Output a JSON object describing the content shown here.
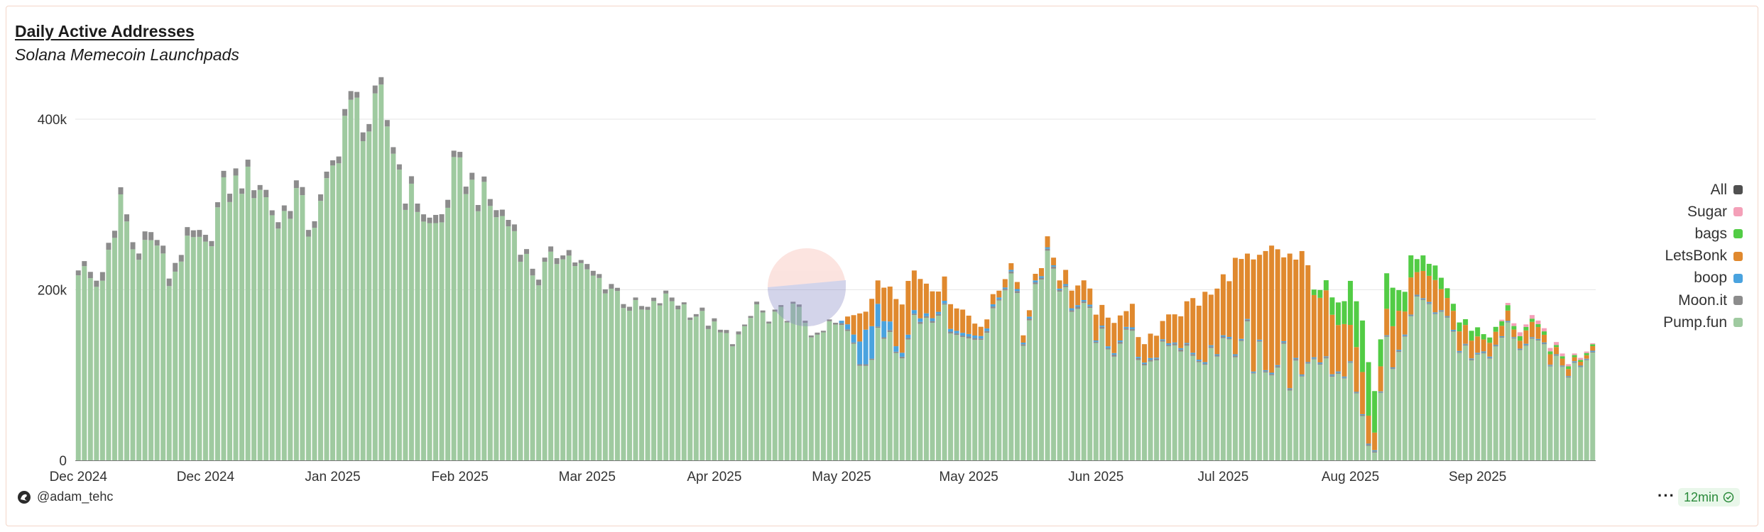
{
  "chart_data": {
    "type": "bar",
    "stacked": true,
    "title": "Daily Active Addresses",
    "subtitle": "Solana Memecoin Launchpads",
    "xlabel": "",
    "ylabel": "",
    "ylim": [
      0,
      440000
    ],
    "y_ticks": [
      {
        "label": "0",
        "value": 0
      },
      {
        "label": "200k",
        "value": 200000
      },
      {
        "label": "400k",
        "value": 400000
      }
    ],
    "x_ticks": [
      {
        "label": "Dec 2024",
        "index": 0
      },
      {
        "label": "Dec 2024",
        "index": 21
      },
      {
        "label": "Jan 2025",
        "index": 42
      },
      {
        "label": "Feb 2025",
        "index": 63
      },
      {
        "label": "Mar 2025",
        "index": 84
      },
      {
        "label": "Apr 2025",
        "index": 105
      },
      {
        "label": "May 2025",
        "index": 126
      },
      {
        "label": "May 2025",
        "index": 147
      },
      {
        "label": "Jun 2025",
        "index": 168
      },
      {
        "label": "Jul 2025",
        "index": 189
      },
      {
        "label": "Aug 2025",
        "index": 210
      },
      {
        "label": "Sep 2025",
        "index": 231
      }
    ],
    "legend_position": "right",
    "legend": [
      {
        "name": "All",
        "color": "#505050"
      },
      {
        "name": "Sugar",
        "color": "#f4a0b8"
      },
      {
        "name": "bags",
        "color": "#52cc45"
      },
      {
        "name": "LetsBonk",
        "color": "#e0892e"
      },
      {
        "name": "boop",
        "color": "#4aa3df"
      },
      {
        "name": "Moon.it",
        "color": "#8c8c8c"
      },
      {
        "name": "Pump.fun",
        "color": "#9fcaa0"
      }
    ],
    "total_anchors": [
      [
        0,
        233000
      ],
      [
        3,
        212000
      ],
      [
        6,
        260000
      ],
      [
        7,
        320000
      ],
      [
        9,
        255000
      ],
      [
        11,
        265000
      ],
      [
        13,
        262000
      ],
      [
        15,
        218000
      ],
      [
        17,
        250000
      ],
      [
        19,
        262000
      ],
      [
        21,
        252000
      ],
      [
        24,
        320000
      ],
      [
        27,
        335000
      ],
      [
        30,
        330000
      ],
      [
        33,
        283000
      ],
      [
        36,
        322000
      ],
      [
        38,
        280000
      ],
      [
        40,
        300000
      ],
      [
        42,
        345000
      ],
      [
        44,
        412000
      ],
      [
        46,
        418000
      ],
      [
        48,
        398000
      ],
      [
        50,
        425000
      ],
      [
        52,
        375000
      ],
      [
        54,
        320000
      ],
      [
        56,
        310000
      ],
      [
        58,
        280000
      ],
      [
        60,
        288000
      ],
      [
        62,
        342000
      ],
      [
        64,
        338000
      ],
      [
        66,
        318000
      ],
      [
        68,
        305000
      ],
      [
        70,
        290000
      ],
      [
        72,
        278000
      ],
      [
        74,
        240000
      ],
      [
        76,
        220000
      ],
      [
        78,
        235000
      ],
      [
        80,
        255000
      ],
      [
        82,
        236000
      ],
      [
        84,
        222000
      ],
      [
        86,
        215000
      ],
      [
        88,
        208000
      ],
      [
        90,
        192000
      ],
      [
        92,
        180000
      ],
      [
        94,
        176000
      ],
      [
        96,
        188000
      ],
      [
        98,
        192000
      ],
      [
        100,
        183000
      ],
      [
        102,
        175000
      ],
      [
        104,
        165000
      ],
      [
        106,
        150000
      ],
      [
        108,
        145000
      ],
      [
        110,
        150000
      ],
      [
        112,
        185000
      ],
      [
        114,
        160000
      ],
      [
        116,
        172000
      ],
      [
        118,
        178000
      ],
      [
        120,
        168000
      ],
      [
        122,
        140000
      ],
      [
        124,
        160000
      ],
      [
        126,
        158000
      ],
      [
        128,
        175000
      ],
      [
        130,
        185000
      ],
      [
        132,
        200000
      ],
      [
        134,
        210000
      ],
      [
        136,
        196000
      ],
      [
        138,
        222000
      ],
      [
        140,
        212000
      ],
      [
        142,
        210000
      ],
      [
        144,
        195000
      ],
      [
        146,
        176000
      ],
      [
        148,
        164000
      ],
      [
        150,
        168000
      ],
      [
        152,
        200000
      ],
      [
        154,
        242000
      ],
      [
        156,
        150000
      ],
      [
        158,
        218000
      ],
      [
        160,
        262000
      ],
      [
        162,
        222000
      ],
      [
        164,
        208000
      ],
      [
        166,
        200000
      ],
      [
        168,
        180000
      ],
      [
        170,
        162000
      ],
      [
        172,
        178000
      ],
      [
        174,
        176000
      ],
      [
        176,
        130000
      ],
      [
        178,
        150000
      ],
      [
        180,
        178000
      ],
      [
        182,
        175000
      ],
      [
        184,
        186000
      ],
      [
        186,
        190000
      ],
      [
        188,
        198000
      ],
      [
        190,
        225000
      ],
      [
        192,
        232000
      ],
      [
        194,
        225000
      ],
      [
        196,
        238000
      ],
      [
        198,
        245000
      ],
      [
        200,
        238000
      ],
      [
        202,
        232000
      ],
      [
        204,
        212000
      ],
      [
        206,
        200000
      ],
      [
        208,
        175000
      ],
      [
        210,
        222000
      ],
      [
        212,
        175000
      ],
      [
        214,
        60000
      ],
      [
        216,
        222000
      ],
      [
        218,
        188000
      ],
      [
        220,
        230000
      ],
      [
        222,
        225000
      ],
      [
        224,
        218000
      ],
      [
        226,
        205000
      ],
      [
        228,
        162000
      ],
      [
        230,
        158000
      ],
      [
        232,
        150000
      ],
      [
        234,
        150000
      ],
      [
        236,
        178000
      ],
      [
        238,
        155000
      ],
      [
        240,
        160000
      ],
      [
        242,
        150000
      ],
      [
        244,
        130000
      ],
      [
        246,
        118000
      ],
      [
        248,
        125000
      ],
      [
        250,
        142000
      ]
    ],
    "segment_ranges": {
      "moonit": [
        [
          0,
          8000
        ],
        [
          55,
          8000
        ],
        [
          70,
          7000
        ],
        [
          90,
          4000
        ],
        [
          105,
          3000
        ],
        [
          125,
          2000
        ],
        [
          150,
          2000
        ],
        [
          170,
          2000
        ],
        [
          230,
          1000
        ],
        [
          250,
          1000
        ]
      ],
      "boop": [
        [
          0,
          0
        ],
        [
          125,
          0
        ],
        [
          128,
          8000
        ],
        [
          130,
          38000
        ],
        [
          132,
          22000
        ],
        [
          134,
          10000
        ],
        [
          136,
          4000
        ],
        [
          140,
          3000
        ],
        [
          155,
          2000
        ],
        [
          210,
          1000
        ],
        [
          250,
          1000
        ]
      ],
      "letsbonk": [
        [
          0,
          0
        ],
        [
          126,
          0
        ],
        [
          128,
          25000
        ],
        [
          131,
          30000
        ],
        [
          134,
          40000
        ],
        [
          137,
          55000
        ],
        [
          140,
          35000
        ],
        [
          144,
          30000
        ],
        [
          148,
          15000
        ],
        [
          150,
          10000
        ],
        [
          154,
          8000
        ],
        [
          160,
          10000
        ],
        [
          166,
          20000
        ],
        [
          170,
          30000
        ],
        [
          176,
          20000
        ],
        [
          180,
          30000
        ],
        [
          184,
          50000
        ],
        [
          188,
          85000
        ],
        [
          192,
          95000
        ],
        [
          196,
          110000
        ],
        [
          198,
          120000
        ],
        [
          200,
          140000
        ],
        [
          202,
          115000
        ],
        [
          204,
          90000
        ],
        [
          206,
          80000
        ],
        [
          208,
          50000
        ],
        [
          210,
          60000
        ],
        [
          212,
          45000
        ],
        [
          214,
          25000
        ],
        [
          216,
          40000
        ],
        [
          220,
          35000
        ],
        [
          224,
          30000
        ],
        [
          228,
          20000
        ],
        [
          232,
          15000
        ],
        [
          236,
          10000
        ],
        [
          240,
          15000
        ],
        [
          244,
          10000
        ],
        [
          248,
          5000
        ],
        [
          250,
          5000
        ]
      ],
      "bags": [
        [
          0,
          0
        ],
        [
          203,
          0
        ],
        [
          205,
          10000
        ],
        [
          208,
          25000
        ],
        [
          210,
          40000
        ],
        [
          212,
          55000
        ],
        [
          214,
          45000
        ],
        [
          216,
          40000
        ],
        [
          218,
          30000
        ],
        [
          220,
          20000
        ],
        [
          224,
          15000
        ],
        [
          228,
          10000
        ],
        [
          232,
          8000
        ],
        [
          236,
          5000
        ],
        [
          240,
          4000
        ],
        [
          244,
          3000
        ],
        [
          248,
          2000
        ],
        [
          250,
          2000
        ]
      ],
      "sugar": [
        [
          0,
          0
        ],
        [
          234,
          0
        ],
        [
          236,
          3000
        ],
        [
          240,
          4000
        ],
        [
          244,
          3000
        ],
        [
          248,
          2000
        ],
        [
          250,
          1000
        ]
      ]
    }
  },
  "footer": {
    "author": "@adam_tehc",
    "more_label": "···",
    "refresh_label": "12min"
  }
}
